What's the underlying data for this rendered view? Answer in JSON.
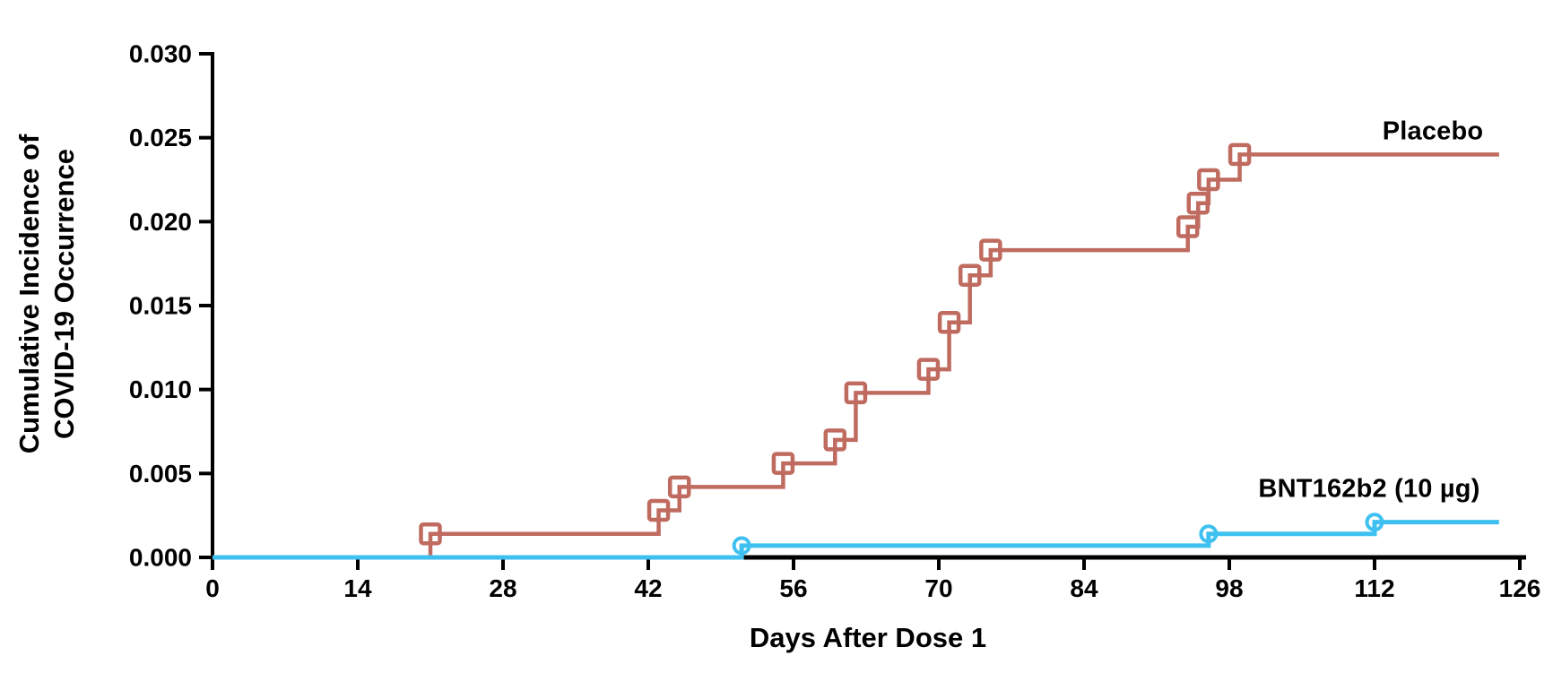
{
  "chart_data": {
    "type": "step-line",
    "title": "",
    "xlabel": "Days After Dose 1",
    "ylabel_lines": [
      "Cumulative Incidence of",
      "COVID-19 Occurrence"
    ],
    "xlim": [
      0,
      126
    ],
    "ylim": [
      0.0,
      0.03
    ],
    "grid": false,
    "legend_position": "inline-labels-right",
    "x_ticks": [
      0,
      14,
      28,
      42,
      56,
      70,
      84,
      98,
      112,
      126
    ],
    "y_ticks": [
      0.0,
      0.005,
      0.01,
      0.015,
      0.02,
      0.025,
      0.03
    ],
    "y_tick_labels": [
      "0.000",
      "0.005",
      "0.010",
      "0.015",
      "0.020",
      "0.025",
      "0.030"
    ],
    "axis_color": "#000000",
    "text_color": "#000000",
    "background_color": "#ffffff",
    "series": [
      {
        "name": "Placebo",
        "color": "#c06b60",
        "marker": "open-square",
        "end_day": 124,
        "points": [
          [
            0,
            0.0
          ],
          [
            21,
            0.0014
          ],
          [
            43,
            0.0028
          ],
          [
            45,
            0.0042
          ],
          [
            55,
            0.0056
          ],
          [
            60,
            0.007
          ],
          [
            62,
            0.0098
          ],
          [
            69,
            0.0112
          ],
          [
            71,
            0.014
          ],
          [
            73,
            0.0168
          ],
          [
            75,
            0.0183
          ],
          [
            94,
            0.0197
          ],
          [
            95,
            0.0211
          ],
          [
            96,
            0.0225
          ],
          [
            99,
            0.024
          ]
        ]
      },
      {
        "name": "BNT162b2 (10 µg)",
        "color": "#3ec1f0",
        "marker": "open-circle",
        "end_day": 124,
        "points": [
          [
            0,
            0.0
          ],
          [
            51,
            0.0007
          ],
          [
            96,
            0.0014
          ],
          [
            112,
            0.0021
          ]
        ]
      }
    ]
  }
}
